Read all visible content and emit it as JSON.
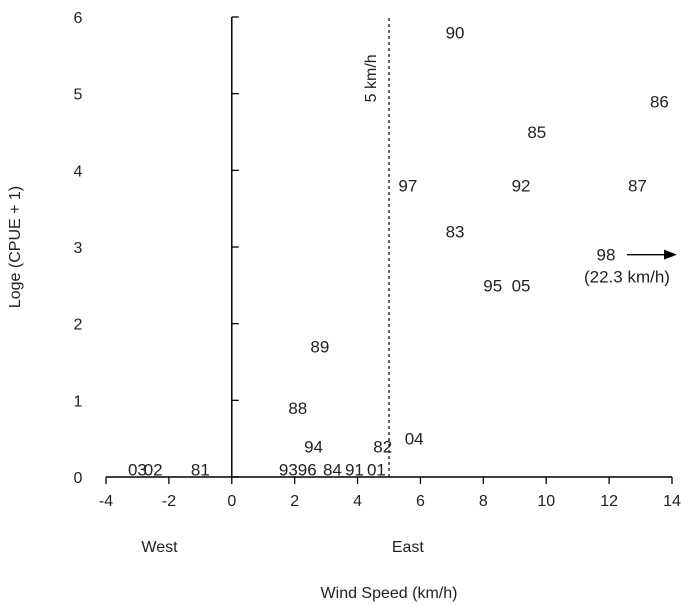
{
  "chart_data": {
    "type": "scatter",
    "title": "",
    "xlabel": "Wind Speed (km/h)",
    "ylabel": "Loge (CPUE + 1)",
    "xlim": [
      -4,
      14
    ],
    "ylim": [
      0,
      6
    ],
    "xticks": [
      -4,
      -2,
      0,
      2,
      4,
      6,
      8,
      10,
      12,
      14
    ],
    "yticks": [
      0,
      1,
      2,
      3,
      4,
      5,
      6
    ],
    "grid": false,
    "direction_labels": {
      "west": "West",
      "east": "East"
    },
    "reference_line": {
      "x": 5,
      "style": "dashed",
      "label": "5 km/h"
    },
    "points": [
      {
        "label": "03",
        "x": -3.0,
        "y": 0.1
      },
      {
        "label": "02",
        "x": -2.5,
        "y": 0.1
      },
      {
        "label": "81",
        "x": -1.0,
        "y": 0.1
      },
      {
        "label": "93",
        "x": 1.8,
        "y": 0.1
      },
      {
        "label": "96",
        "x": 2.4,
        "y": 0.1
      },
      {
        "label": "84",
        "x": 3.2,
        "y": 0.1
      },
      {
        "label": "91",
        "x": 3.9,
        "y": 0.1
      },
      {
        "label": "01",
        "x": 4.6,
        "y": 0.1
      },
      {
        "label": "82",
        "x": 4.8,
        "y": 0.4
      },
      {
        "label": "04",
        "x": 5.8,
        "y": 0.5
      },
      {
        "label": "94",
        "x": 2.6,
        "y": 0.4
      },
      {
        "label": "88",
        "x": 2.1,
        "y": 0.9
      },
      {
        "label": "89",
        "x": 2.8,
        "y": 1.7
      },
      {
        "label": "97",
        "x": 5.6,
        "y": 3.8
      },
      {
        "label": "83",
        "x": 7.1,
        "y": 3.2
      },
      {
        "label": "90",
        "x": 7.1,
        "y": 5.8
      },
      {
        "label": "85",
        "x": 9.7,
        "y": 4.5
      },
      {
        "label": "92",
        "x": 9.2,
        "y": 3.8
      },
      {
        "label": "95",
        "x": 8.3,
        "y": 2.5
      },
      {
        "label": "05",
        "x": 9.2,
        "y": 2.5
      },
      {
        "label": "86",
        "x": 13.6,
        "y": 4.9
      },
      {
        "label": "87",
        "x": 12.9,
        "y": 3.8
      }
    ],
    "offscale_point": {
      "label": "98",
      "note": "(22.3 km/h)",
      "x": 22.3,
      "y": 2.9
    }
  }
}
